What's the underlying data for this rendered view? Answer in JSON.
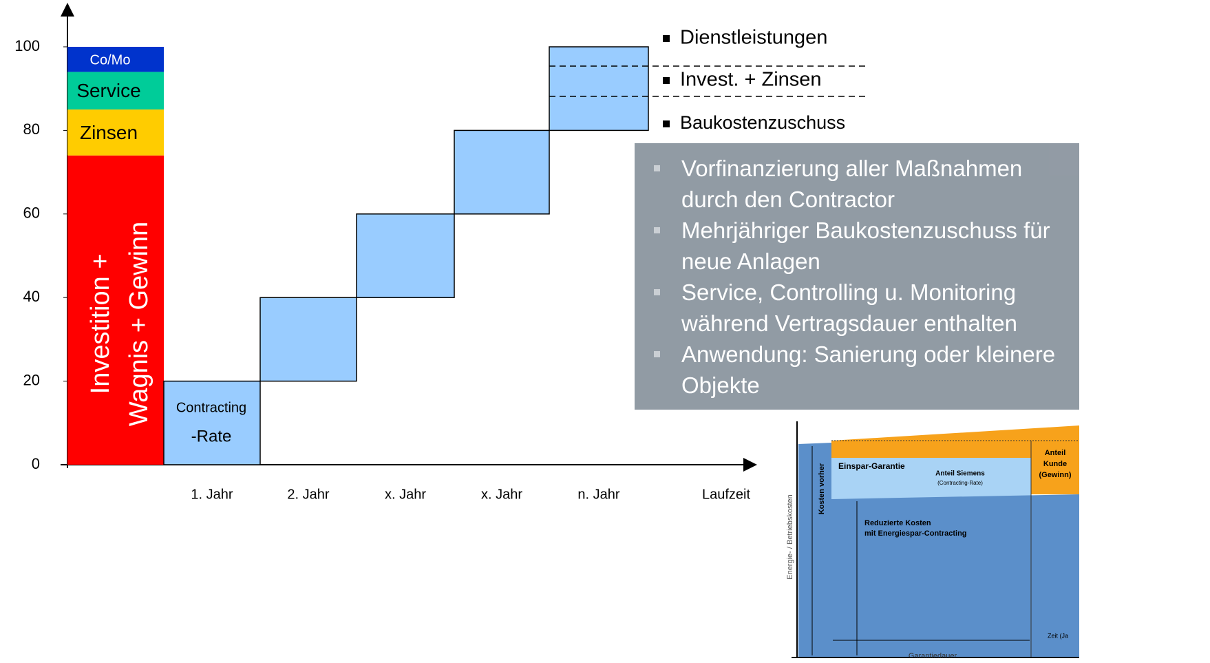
{
  "chart_data": {
    "type": "stacked-float",
    "ylim": [
      0,
      100
    ],
    "yticks": [
      0,
      20,
      40,
      60,
      80,
      100
    ],
    "x_label": "Laufzeit",
    "stack": [
      {
        "name": "Investition + Wagnis + Gewinn",
        "label_lines": [
          "Investition +",
          "Wagnis + Gewinn"
        ],
        "color": "#ff0000",
        "value": 74
      },
      {
        "name": "Zinsen",
        "color": "#ffcc00",
        "value": 11
      },
      {
        "name": "Service",
        "color": "#00cc99",
        "value": 9
      },
      {
        "name": "Co/Mo",
        "color": "#0033cc",
        "value": 6
      }
    ],
    "boxes": {
      "color": "#99ccff",
      "categories": [
        "1. Jahr",
        "2. Jahr",
        "x. Jahr",
        "x. Jahr",
        "n. Jahr"
      ],
      "ranges": [
        [
          0,
          20
        ],
        [
          20,
          40
        ],
        [
          40,
          60
        ],
        [
          60,
          80
        ],
        [
          80,
          100
        ]
      ],
      "first_label": [
        "Contracting",
        "-Rate"
      ]
    },
    "annotations": [
      "Dienstleistungen",
      "Invest. + Zinsen",
      "Baukostenzuschuss"
    ]
  },
  "bullets": [
    "Vorfinanzierung aller Maßnahmen durch den Contractor",
    "Mehrjähriger Baukostenzuschuss für neue Anlagen",
    "Service, Controlling u. Monitoring während Vertragsdauer enthalten",
    "Anwendung: Sanierung oder kleinere Objekte"
  ],
  "inset": {
    "y_label": "Energie- / Betriebskosten",
    "before": "Kosten vorher",
    "guarantee": "Einspar-Garantie",
    "share": "Anteil Siemens",
    "share_sub": "(Contracting-Rate)",
    "customer": [
      "Anteil",
      "Kunde",
      "(Gewinn)"
    ],
    "reduced": [
      "Reduzierte Kosten",
      "mit Energiespar-Contracting"
    ],
    "duration": "Garantiedauer",
    "time": "Zeit (Ja"
  }
}
